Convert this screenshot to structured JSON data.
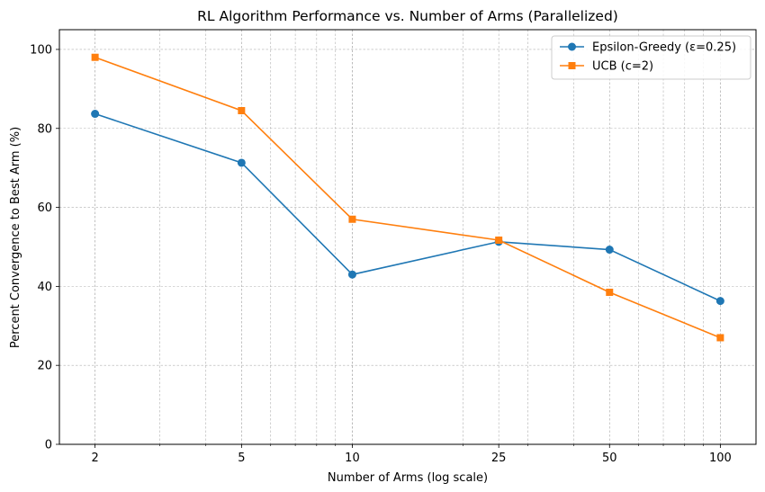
{
  "chart_data": {
    "type": "line",
    "title": "RL Algorithm Performance vs. Number of Arms (Parallelized)",
    "xlabel": "Number of Arms (log scale)",
    "ylabel": "Percent Convergence to Best Arm (%)",
    "x_scale": "log",
    "x": [
      2,
      5,
      10,
      25,
      50,
      100
    ],
    "x_tick_labels": [
      "2",
      "5",
      "10",
      "25",
      "50",
      "100"
    ],
    "xlim": [
      1.6,
      125
    ],
    "ylim": [
      0,
      105
    ],
    "y_ticks": [
      0,
      20,
      40,
      60,
      80,
      100
    ],
    "y_tick_labels": [
      "0",
      "20",
      "40",
      "60",
      "80",
      "100"
    ],
    "grid": true,
    "legend_position": "top-right",
    "series": [
      {
        "name": "Epsilon-Greedy (ε=0.25)",
        "values": [
          83.7,
          71.3,
          43.0,
          51.3,
          49.3,
          36.3
        ],
        "color": "#1f77b4",
        "marker": "circle"
      },
      {
        "name": "UCB (c=2)",
        "values": [
          98.0,
          84.5,
          57.0,
          51.7,
          38.5,
          27.0
        ],
        "color": "#ff7f0e",
        "marker": "square"
      }
    ]
  }
}
